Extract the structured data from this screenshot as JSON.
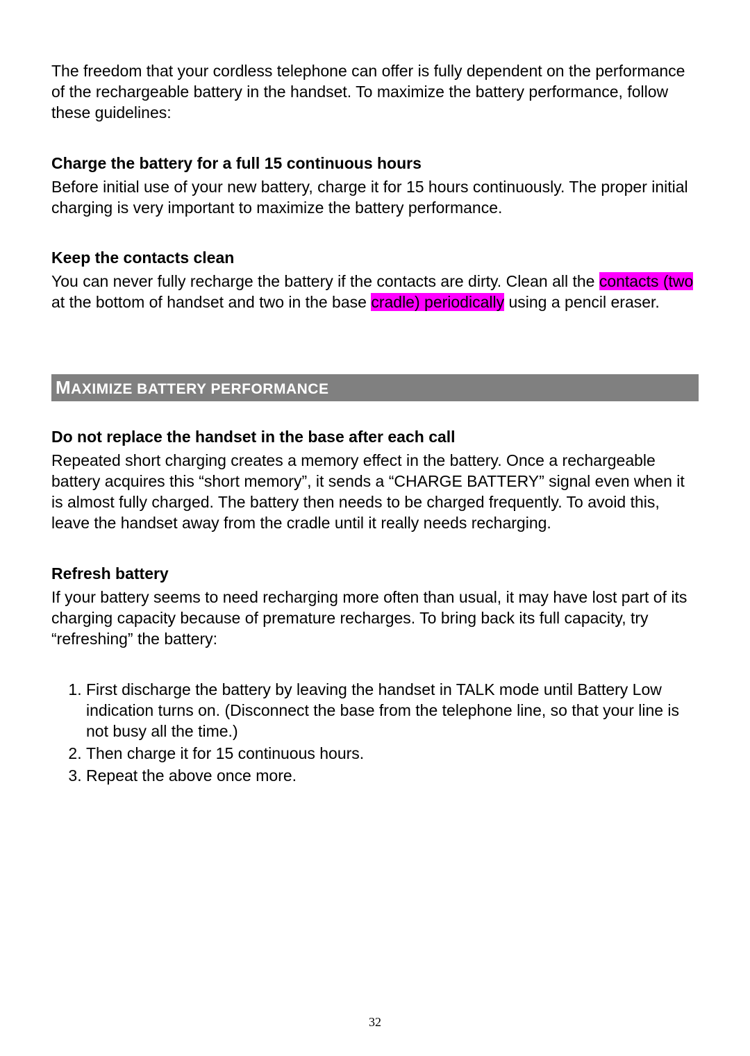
{
  "colors": {
    "page_bg": "#ffffff",
    "text": "#000000",
    "highlight_bg": "#ff00ff",
    "banner_bg": "#808080",
    "banner_text": "#ffffff"
  },
  "typography": {
    "body_font": "Arial",
    "body_size_pt": 17,
    "heading_size_pt": 17,
    "heading_weight": "bold",
    "banner_size_pt": 19,
    "page_num_font": "Times New Roman",
    "page_num_size_pt": 13
  },
  "intro": "The freedom that your cordless telephone can offer is fully dependent on the performance of the rechargeable battery in the handset. To maximize the battery performance, follow these guidelines:",
  "section1": {
    "heading": "Charge the battery for a full 15 continuous hours",
    "body": "Before initial use of your new battery, charge it for 15 hours continuously. The proper initial charging is very important to maximize the battery performance."
  },
  "section2": {
    "heading": "Keep the contacts clean",
    "body_pre": "You can never fully recharge the battery if the contacts are dirty. Clean all the ",
    "hl1": "contacts (two",
    "body_mid": " at the bottom of handset and two in the base ",
    "hl2": "cradle) periodically",
    "body_post": " using a pencil eraser."
  },
  "banner": {
    "text_large": "M",
    "text_rest": "AXIMIZE BATTERY PERFORMANCE"
  },
  "section3": {
    "heading": "Do not replace the handset in the base after each call",
    "body": "Repeated short charging creates a memory effect in the battery. Once a rechargeable battery acquires this “short memory”, it sends a “CHARGE BATTERY” signal even when it is almost fully charged. The battery then needs to be charged frequently. To avoid this, leave the handset away from the cradle until it really needs recharging."
  },
  "section4": {
    "heading": "Refresh battery",
    "body": "If your battery seems to need recharging more often than usual, it may have lost part of its charging capacity because of premature recharges. To bring back its full capacity, try “refreshing” the battery:",
    "steps": [
      "First discharge the battery by leaving the handset in TALK mode until Battery Low indication turns on. (Disconnect the base from the telephone line, so that your line is not busy all the time.)",
      "Then charge it for 15 continuous hours.",
      "Repeat the above once more."
    ]
  },
  "page_number": "32"
}
